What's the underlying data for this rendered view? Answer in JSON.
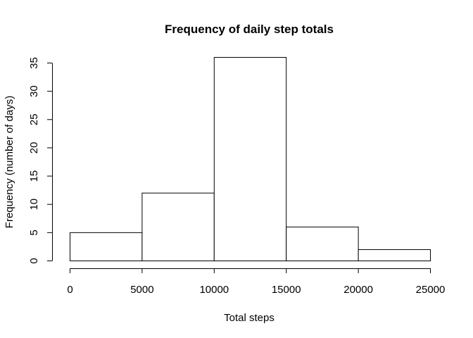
{
  "chart_data": {
    "type": "bar",
    "title": "Frequency of daily step totals",
    "xlabel": "Total steps",
    "ylabel": "Frequency (number of days)",
    "bins": [
      {
        "from": 0,
        "to": 5000,
        "value": 5
      },
      {
        "from": 5000,
        "to": 10000,
        "value": 12
      },
      {
        "from": 10000,
        "to": 15000,
        "value": 36
      },
      {
        "from": 15000,
        "to": 20000,
        "value": 6
      },
      {
        "from": 20000,
        "to": 25000,
        "value": 2
      }
    ],
    "xlim": [
      0,
      25000
    ],
    "ylim": [
      0,
      35
    ],
    "xticks": [
      0,
      5000,
      10000,
      15000,
      20000,
      25000
    ],
    "yticks": [
      0,
      5,
      10,
      15,
      20,
      25,
      30,
      35
    ],
    "grid": false,
    "bar_fill": "#ffffff",
    "bar_stroke": "#000000"
  }
}
